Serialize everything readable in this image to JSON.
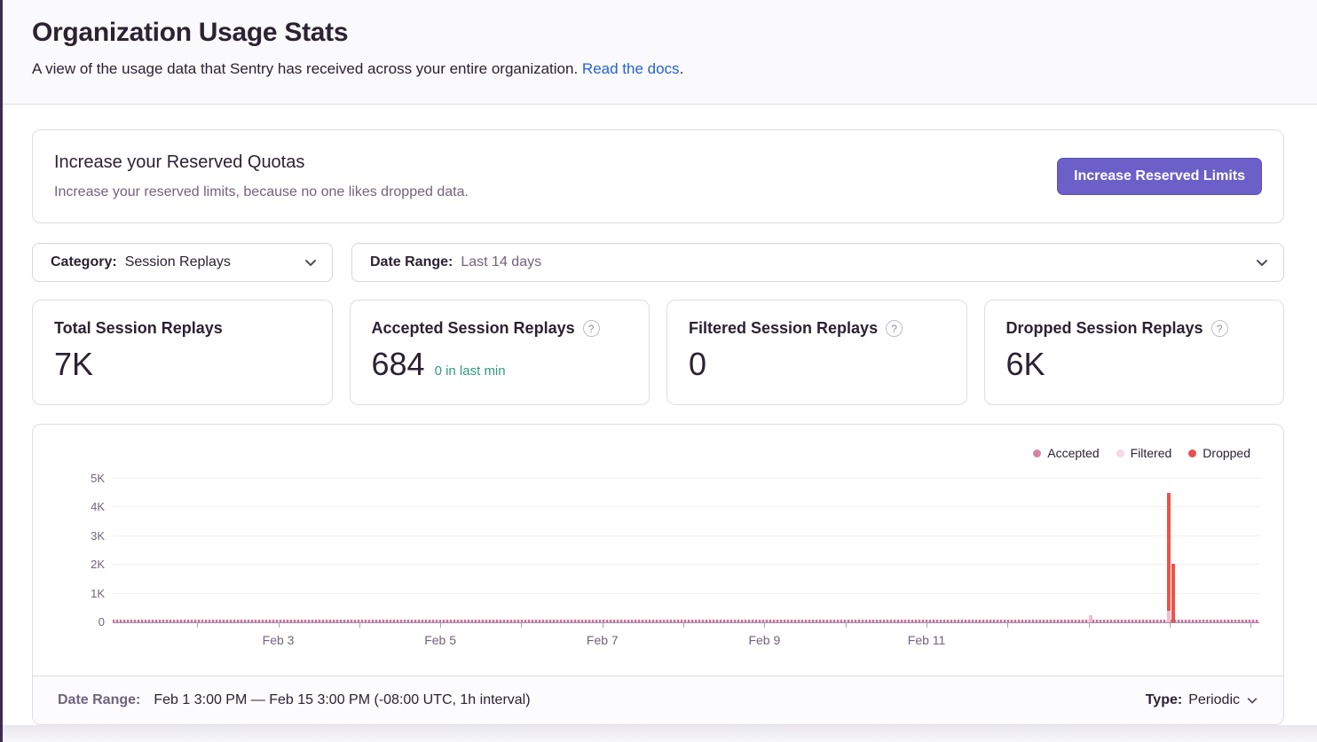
{
  "page": {
    "title": "Organization Usage Stats",
    "subtitle": "A view of the usage data that Sentry has received across your entire organization.",
    "subtitle_link": "Read the docs",
    "subtitle_period": "."
  },
  "quota_banner": {
    "title": "Increase your Reserved Quotas",
    "description": "Increase your reserved limits, because no one likes dropped data.",
    "button_label": "Increase Reserved Limits"
  },
  "filters": {
    "category": {
      "label": "Category:",
      "value": "Session Replays"
    },
    "date_range": {
      "label": "Date Range:",
      "value": "Last 14 days"
    }
  },
  "stats": [
    {
      "title": "Total Session Replays",
      "value": "7K",
      "sub": ""
    },
    {
      "title": "Accepted Session Replays",
      "value": "684",
      "sub": "0 in last min"
    },
    {
      "title": "Filtered Session Replays",
      "value": "0",
      "sub": ""
    },
    {
      "title": "Dropped Session Replays",
      "value": "6K",
      "sub": ""
    }
  ],
  "chart": {
    "legend": [
      {
        "label": "Accepted",
        "color": "#d4849f"
      },
      {
        "label": "Filtered",
        "color": "#f7d9e3"
      },
      {
        "label": "Dropped",
        "color": "#e5504b"
      }
    ]
  },
  "chart_data": {
    "type": "bar",
    "title": "",
    "xlabel": "",
    "ylabel": "",
    "x_axis": {
      "start": "Feb 1 3:00 PM",
      "end": "Feb 15 3:00 PM",
      "interval": "1h",
      "ticks_pct": [
        7.37,
        14.44,
        21.5,
        28.57,
        35.64,
        42.71,
        49.77,
        56.84,
        63.91,
        70.98,
        78.05,
        85.11,
        92.18,
        99.25
      ],
      "tick_labels": [
        {
          "label": "Feb 3",
          "pct": 14.44
        },
        {
          "label": "Feb 5",
          "pct": 28.57
        },
        {
          "label": "Feb 7",
          "pct": 42.71
        },
        {
          "label": "Feb 9",
          "pct": 56.84
        },
        {
          "label": "Feb 11",
          "pct": 70.98
        }
      ]
    },
    "y_axis": {
      "min": 0,
      "max": 5000,
      "tick_labels": [
        "0",
        "1K",
        "2K",
        "3K",
        "4K",
        "5K"
      ],
      "grid": true
    },
    "series_totals": {
      "accepted": 684,
      "filtered": 0,
      "dropped": 6000
    },
    "series_colors": {
      "accepted": "#f2bccb",
      "filtered": "#f7d9e3",
      "dropped": "#ec5449"
    },
    "bars": [
      {
        "x_pct": 85.11,
        "date": "Feb 13",
        "stack": [
          {
            "series": "accepted",
            "value": 250
          }
        ]
      },
      {
        "x_pct": 91.95,
        "date": "Feb 14",
        "stack": [
          {
            "series": "accepted",
            "value": 400
          },
          {
            "series": "dropped",
            "value": 4100
          }
        ]
      },
      {
        "x_pct": 92.33,
        "date": "Feb 14",
        "stack": [
          {
            "series": "dropped",
            "value": 2050
          }
        ]
      }
    ],
    "baseline_note": "near-zero accepted values rendered as tiny dashes every hour across the full range",
    "legend_position": "top-right"
  },
  "chart_footer": {
    "label": "Date Range:",
    "value": "Feb 1 3:00 PM — Feb 15 3:00 PM (-08:00 UTC, 1h interval)",
    "type_label": "Type:",
    "type_value": "Periodic"
  }
}
